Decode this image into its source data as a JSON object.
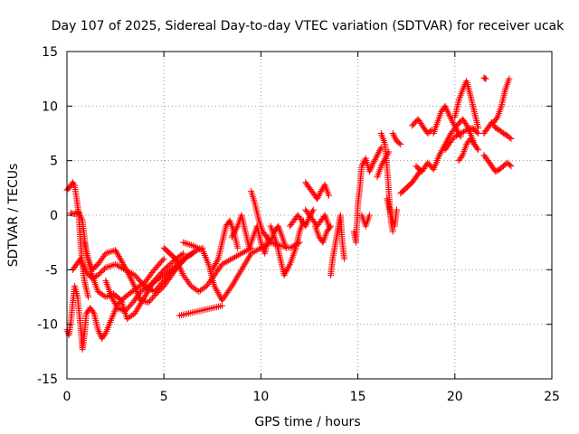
{
  "chart_data": {
    "type": "scatter",
    "title": "Day 107 of 2025, Sidereal Day-to-day VTEC variation (SDTVAR) for receiver ucak",
    "xlabel": "GPS time / hours",
    "ylabel": "SDTVAR / TECUs",
    "xlim": [
      0,
      25
    ],
    "ylim": [
      -15,
      15
    ],
    "xticks": [
      0,
      5,
      10,
      15,
      20,
      25
    ],
    "yticks": [
      -15,
      -10,
      -5,
      0,
      5,
      10,
      15
    ],
    "grid": true,
    "marker": "+",
    "color": "#ff0000",
    "series": [
      {
        "name": "SDTVAR",
        "tracks": [
          {
            "x": [
              0.0,
              0.15,
              0.3,
              0.4,
              0.5,
              0.6,
              0.7,
              0.8,
              0.9,
              1.0,
              1.1
            ],
            "y": [
              2.3,
              2.6,
              3.0,
              2.7,
              1.5,
              0.2,
              -2.5,
              -4.5,
              -6.0,
              -6.8,
              -7.5
            ]
          },
          {
            "x": [
              0.0,
              0.1,
              0.2,
              0.3,
              0.4,
              0.55,
              0.7,
              0.8,
              0.9,
              1.0,
              1.2,
              1.4,
              1.6,
              1.8,
              2.0,
              2.3,
              2.6,
              3.0,
              3.5,
              4.0,
              4.5,
              5.0
            ],
            "y": [
              -10.5,
              -11.0,
              -9.8,
              -8.0,
              -6.5,
              -7.5,
              -10.2,
              -12.3,
              -11.0,
              -9.0,
              -8.5,
              -9.0,
              -10.5,
              -11.3,
              -10.8,
              -9.5,
              -8.2,
              -7.5,
              -6.8,
              -6.2,
              -5.0,
              -4.0
            ]
          },
          {
            "x": [
              0.2,
              0.4,
              0.6,
              0.8,
              1.0,
              1.3,
              1.6,
              2.0,
              2.4,
              2.8,
              3.1,
              3.5,
              4.0,
              4.5,
              5.0,
              5.5,
              6.0
            ],
            "y": [
              0.2,
              0.1,
              0.3,
              -0.5,
              -3.5,
              -5.5,
              -7.0,
              -7.5,
              -7.2,
              -7.8,
              -9.5,
              -9.0,
              -7.5,
              -6.0,
              -5.0,
              -4.2,
              -3.5
            ]
          },
          {
            "x": [
              0.3,
              0.5,
              0.7,
              1.0,
              1.3,
              1.6,
              2.0,
              2.5,
              3.0,
              3.5,
              4.0,
              4.5,
              5.0,
              5.5,
              6.0
            ],
            "y": [
              -5.0,
              -4.5,
              -4.0,
              -5.2,
              -5.8,
              -5.5,
              -4.8,
              -4.5,
              -5.0,
              -5.5,
              -6.5,
              -7.0,
              -6.0,
              -5.0,
              -4.2
            ]
          },
          {
            "x": [
              0.9,
              1.1,
              1.3,
              1.6,
              2.0,
              2.5,
              3.0,
              3.4,
              3.8,
              4.2,
              4.6,
              5.0,
              5.4,
              5.8,
              6.2,
              6.6,
              7.0
            ],
            "y": [
              -2.5,
              -4.0,
              -5.0,
              -4.5,
              -3.5,
              -3.2,
              -4.8,
              -6.2,
              -7.8,
              -8.0,
              -7.2,
              -6.5,
              -5.5,
              -4.5,
              -3.8,
              -3.3,
              -3.0
            ]
          },
          {
            "x": [
              2.0,
              2.3,
              2.6,
              3.0,
              3.4,
              3.8,
              4.2,
              4.6,
              5.0,
              5.5,
              6.0,
              6.5
            ],
            "y": [
              -6.0,
              -7.5,
              -8.5,
              -8.8,
              -8.0,
              -7.0,
              -6.5,
              -6.0,
              -5.5,
              -4.8,
              -4.0,
              -3.5
            ]
          },
          {
            "x": [
              5.0,
              5.3,
              5.6,
              6.0,
              6.4,
              6.8,
              7.2,
              7.6,
              8.0,
              8.5,
              9.0,
              9.5
            ],
            "y": [
              -3.0,
              -3.5,
              -4.0,
              -5.5,
              -6.5,
              -7.0,
              -6.5,
              -5.5,
              -4.5,
              -4.0,
              -3.5,
              -3.0
            ]
          },
          {
            "x": [
              6.0,
              6.5,
              7.0,
              7.3,
              7.6,
              8.0,
              8.5,
              9.0,
              9.5,
              10.0,
              10.5,
              11.0,
              11.5,
              12.0
            ],
            "y": [
              -2.5,
              -2.8,
              -3.2,
              -4.5,
              -6.5,
              -7.8,
              -6.5,
              -5.0,
              -3.5,
              -3.0,
              -2.5,
              -2.8,
              -3.0,
              -2.5
            ]
          },
          {
            "x": [
              7.5,
              7.8,
              8.0,
              8.2,
              8.4,
              8.6,
              8.8
            ],
            "y": [
              -5.0,
              -4.0,
              -2.5,
              -1.0,
              -0.5,
              -1.5,
              -3.0
            ]
          },
          {
            "x": [
              8.5,
              8.8,
              9.0,
              9.2,
              9.4,
              9.6,
              9.8,
              10.0,
              10.2,
              10.4
            ],
            "y": [
              -2.0,
              -1.0,
              0.0,
              -1.5,
              -3.0,
              -2.0,
              -1.0,
              -2.5,
              -3.5,
              -2.0
            ]
          },
          {
            "x": [
              9.5,
              9.7,
              9.9,
              10.1,
              10.3,
              10.5,
              10.7,
              10.9,
              11.1,
              11.3
            ],
            "y": [
              2.2,
              1.0,
              -0.5,
              -1.5,
              -2.0,
              -2.5,
              -1.5,
              -1.0,
              -2.0,
              -3.0
            ]
          },
          {
            "x": [
              10.5,
              10.8,
              11.0,
              11.2,
              11.5,
              11.8,
              12.0,
              12.2
            ],
            "y": [
              -1.0,
              -2.5,
              -4.0,
              -5.5,
              -4.5,
              -3.0,
              -1.5,
              -0.5
            ]
          },
          {
            "x": [
              11.5,
              11.7,
              11.9,
              12.1,
              12.3,
              12.5,
              12.7
            ],
            "y": [
              -1.0,
              -0.5,
              0.0,
              -0.5,
              -1.0,
              -0.2,
              0.5
            ]
          },
          {
            "x": [
              12.3,
              12.5,
              12.7,
              12.9,
              13.1,
              13.3,
              13.5
            ],
            "y": [
              3.0,
              2.5,
              2.0,
              1.5,
              2.2,
              2.8,
              1.8
            ]
          },
          {
            "x": [
              12.3,
              12.5,
              12.7,
              12.9,
              13.1,
              13.3,
              13.5
            ],
            "y": [
              0.5,
              0.0,
              -0.5,
              -1.0,
              -0.5,
              0.0,
              -1.0
            ]
          },
          {
            "x": [
              12.8,
              12.9,
              13.0,
              13.2,
              13.4,
              13.6
            ],
            "y": [
              -1.0,
              -1.5,
              -2.0,
              -2.5,
              -1.5,
              -1.0
            ]
          },
          {
            "x": [
              13.6,
              13.7,
              13.8,
              13.9,
              14.0,
              14.1,
              14.2,
              14.3
            ],
            "y": [
              -5.5,
              -4.0,
              -3.0,
              -2.0,
              -1.0,
              0.0,
              -2.5,
              -4.0
            ]
          },
          {
            "x": [
              14.8,
              14.9,
              15.0,
              15.1,
              15.2,
              15.4,
              15.6,
              15.8,
              16.0,
              16.2
            ],
            "y": [
              -1.5,
              -2.5,
              1.0,
              2.5,
              4.5,
              5.2,
              4.0,
              4.8,
              5.5,
              6.2
            ]
          },
          {
            "x": [
              15.2,
              15.4,
              15.6
            ],
            "y": [
              0.0,
              -1.0,
              0.0
            ]
          },
          {
            "x": [
              16.0,
              16.2,
              16.4,
              16.6
            ],
            "y": [
              3.5,
              4.5,
              5.2,
              5.8
            ]
          },
          {
            "x": [
              16.2,
              16.4,
              16.5,
              16.6,
              16.7,
              16.8
            ],
            "y": [
              7.5,
              6.5,
              4.5,
              2.0,
              -0.5,
              -1.5
            ]
          },
          {
            "x": [
              16.5,
              16.7,
              16.9,
              17.0
            ],
            "y": [
              1.5,
              0.0,
              -1.0,
              0.5
            ]
          },
          {
            "x": [
              16.8,
              17.0,
              17.2
            ],
            "y": [
              7.5,
              6.8,
              6.5
            ]
          },
          {
            "x": [
              17.2,
              17.5,
              17.8,
              18.0,
              18.2
            ],
            "y": [
              2.0,
              2.5,
              3.0,
              3.5,
              4.0
            ]
          },
          {
            "x": [
              17.8,
              18.1,
              18.4,
              18.6,
              18.8
            ],
            "y": [
              8.2,
              8.8,
              8.0,
              7.5,
              7.8
            ]
          },
          {
            "x": [
              18.0,
              18.3,
              18.6,
              18.9,
              19.2,
              19.5,
              19.8,
              20.1,
              20.4,
              20.7,
              21.0
            ],
            "y": [
              4.5,
              4.0,
              4.8,
              4.2,
              5.5,
              6.5,
              7.5,
              8.2,
              8.8,
              8.0,
              6.5
            ]
          },
          {
            "x": [
              18.9,
              19.1,
              19.3,
              19.5,
              19.7,
              19.9,
              20.1,
              20.3
            ],
            "y": [
              7.5,
              8.5,
              9.5,
              10.0,
              9.2,
              8.5,
              7.8,
              7.2
            ]
          },
          {
            "x": [
              19.5,
              19.8,
              20.0,
              20.3,
              20.6,
              20.9,
              21.2
            ],
            "y": [
              6.0,
              6.8,
              7.2,
              7.5,
              7.8,
              8.0,
              7.5
            ]
          },
          {
            "x": [
              20.0,
              20.2,
              20.4,
              20.6,
              20.8,
              21.0,
              21.2
            ],
            "y": [
              9.0,
              10.5,
              11.5,
              12.3,
              11.0,
              9.5,
              8.0
            ]
          },
          {
            "x": [
              20.2,
              20.4,
              20.6,
              20.8,
              21.0,
              21.2
            ],
            "y": [
              5.0,
              5.5,
              6.5,
              7.0,
              6.5,
              6.0
            ]
          },
          {
            "x": [
              21.5,
              21.6
            ],
            "y": [
              12.6,
              12.5
            ]
          },
          {
            "x": [
              21.5,
              21.7,
              21.9,
              22.1,
              22.3,
              22.5,
              22.7,
              22.9
            ],
            "y": [
              5.5,
              5.0,
              4.5,
              4.0,
              4.2,
              4.5,
              4.8,
              4.5
            ]
          },
          {
            "x": [
              21.5,
              21.7,
              21.9,
              22.1,
              22.3,
              22.5,
              22.7,
              22.9
            ],
            "y": [
              7.5,
              8.0,
              8.5,
              8.0,
              7.8,
              7.5,
              7.3,
              7.0
            ]
          },
          {
            "x": [
              22.0,
              22.2,
              22.4,
              22.6,
              22.8
            ],
            "y": [
              8.5,
              9.0,
              10.0,
              11.5,
              12.5
            ]
          },
          {
            "x": [
              5.8,
              8.0
            ],
            "y": [
              -9.2,
              -8.3
            ]
          }
        ]
      }
    ]
  }
}
